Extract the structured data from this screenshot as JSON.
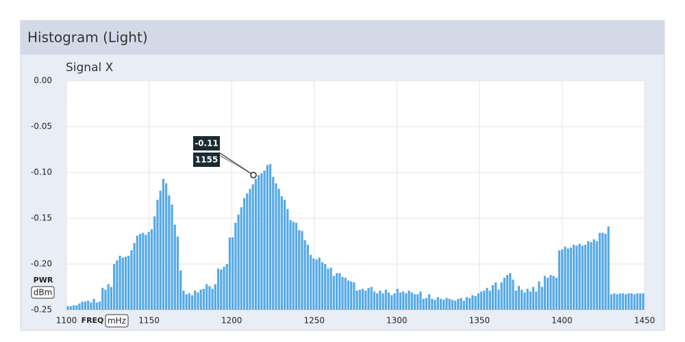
{
  "chart_data": {
    "type": "histogram",
    "title": "Histogram (Light)",
    "subtitle": "Signal X",
    "x_label": "FREQ",
    "x_unit": "mHz",
    "y_label": "PWR",
    "y_unit": "dBm",
    "color": "#55a9e6",
    "grid": true,
    "xlim": [
      1100,
      1450
    ],
    "xticks": [
      1100,
      1150,
      1200,
      1250,
      1300,
      1350,
      1400,
      1450
    ],
    "ylim": [
      -0.25,
      0
    ],
    "yticks": [
      {
        "value": 0,
        "label": "0.00"
      },
      -0.05,
      {
        "value": -0.1,
        "label": "-0.10"
      },
      -0.15,
      {
        "value": -0.2,
        "label": "-0.20"
      },
      -0.25
    ],
    "tooltip": {
      "y": -0.11,
      "x": 1155
    },
    "bins": [
      1100,
      1101.75,
      1103.5,
      1105.25,
      1107,
      1108.75,
      1110.5,
      1112.25,
      1114,
      1115.75,
      1117.5,
      1119.25,
      1121,
      1122.75,
      1124.5,
      1126.25,
      1128,
      1129.75,
      1131.5,
      1133.25,
      1135,
      1136.75,
      1138.5,
      1140.25,
      1142,
      1143.75,
      1145.5,
      1147.25,
      1149,
      1150.75,
      1152.5,
      1154.25,
      1156,
      1157.75,
      1159.5,
      1161.25,
      1163,
      1164.75,
      1166.5,
      1168.25,
      1170,
      1171.75,
      1173.5,
      1175.25,
      1177,
      1178.75,
      1180.5,
      1182.25,
      1184,
      1185.75,
      1187.5,
      1189.25,
      1191,
      1192.75,
      1194.5,
      1196.25,
      1198,
      1199.75,
      1201.5,
      1203.25,
      1205,
      1206.75,
      1208.5,
      1210.25,
      1212,
      1213.75,
      1215.5,
      1217.25,
      1219,
      1220.75,
      1222.5,
      1224.25,
      1226,
      1227.75,
      1229.5,
      1231.25,
      1233,
      1234.75,
      1236.5,
      1238.25,
      1240,
      1241.75,
      1243.5,
      1245.25,
      1247,
      1248.75,
      1250.5,
      1252.25,
      1254,
      1255.75,
      1257.5,
      1259.25,
      1261,
      1262.75,
      1264.5,
      1266.25,
      1268,
      1269.75,
      1271.5,
      1273.25,
      1275,
      1276.75,
      1278.5,
      1280.25,
      1282,
      1283.75,
      1285.5,
      1287.25,
      1289,
      1290.75,
      1292.5,
      1294.25,
      1296,
      1297.75,
      1299.5,
      1301.25,
      1303,
      1304.75,
      1306.5,
      1308.25,
      1310,
      1311.75,
      1313.5,
      1315.25,
      1317,
      1318.75,
      1320.5,
      1322.25,
      1324,
      1325.75,
      1327.5,
      1329.25,
      1331,
      1332.75,
      1334.5,
      1336.25,
      1338,
      1339.75,
      1341.5,
      1343.25,
      1345,
      1346.75,
      1348.5,
      1350.25,
      1352,
      1353.75,
      1355.5,
      1357.25,
      1359,
      1360.75,
      1362.5,
      1364.25,
      1366,
      1367.75,
      1369.5,
      1371.25,
      1373,
      1374.75,
      1376.5,
      1378.25,
      1380,
      1381.75,
      1383.5,
      1385.25,
      1387,
      1388.75,
      1390.5,
      1392.25,
      1394,
      1395.75,
      1397.5,
      1399.25,
      1401,
      1402.75,
      1404.5,
      1406.25,
      1408,
      1409.75,
      1411.5,
      1413.25,
      1415,
      1416.75,
      1418.5,
      1420.25,
      1422,
      1423.75,
      1425.5,
      1427.25,
      1429,
      1430.75,
      1432.5,
      1434.25,
      1436,
      1437.75,
      1439.5,
      1441.25,
      1443,
      1444.75,
      1446.5,
      1448.25,
      1450
    ],
    "values": [
      -0.246,
      -0.246,
      -0.245,
      -0.245,
      -0.243,
      -0.241,
      -0.241,
      -0.24,
      -0.242,
      -0.238,
      -0.242,
      -0.241,
      -0.226,
      -0.228,
      -0.222,
      -0.225,
      -0.2,
      -0.196,
      -0.191,
      -0.193,
      -0.192,
      -0.191,
      -0.185,
      -0.177,
      -0.169,
      -0.167,
      -0.166,
      -0.168,
      -0.165,
      -0.162,
      -0.148,
      -0.13,
      -0.12,
      -0.107,
      -0.112,
      -0.125,
      -0.135,
      -0.157,
      -0.17,
      -0.207,
      -0.229,
      -0.233,
      -0.232,
      -0.234,
      -0.229,
      -0.231,
      -0.228,
      -0.227,
      -0.222,
      -0.224,
      -0.227,
      -0.222,
      -0.205,
      -0.206,
      -0.203,
      -0.2,
      -0.171,
      -0.171,
      -0.155,
      -0.146,
      -0.138,
      -0.128,
      -0.123,
      -0.118,
      -0.113,
      -0.107,
      -0.103,
      -0.101,
      -0.098,
      -0.092,
      -0.091,
      -0.105,
      -0.112,
      -0.118,
      -0.126,
      -0.13,
      -0.14,
      -0.152,
      -0.154,
      -0.155,
      -0.163,
      -0.164,
      -0.174,
      -0.179,
      -0.19,
      -0.194,
      -0.195,
      -0.193,
      -0.198,
      -0.2,
      -0.205,
      -0.204,
      -0.213,
      -0.21,
      -0.21,
      -0.214,
      -0.215,
      -0.218,
      -0.219,
      -0.22,
      -0.229,
      -0.228,
      -0.227,
      -0.229,
      -0.226,
      -0.225,
      -0.23,
      -0.232,
      -0.229,
      -0.232,
      -0.228,
      -0.231,
      -0.234,
      -0.232,
      -0.227,
      -0.231,
      -0.23,
      -0.232,
      -0.229,
      -0.231,
      -0.233,
      -0.233,
      -0.23,
      -0.238,
      -0.237,
      -0.233,
      -0.238,
      -0.239,
      -0.236,
      -0.238,
      -0.239,
      -0.237,
      -0.238,
      -0.239,
      -0.24,
      -0.238,
      -0.237,
      -0.24,
      -0.236,
      -0.237,
      -0.234,
      -0.235,
      -0.232,
      -0.23,
      -0.229,
      -0.226,
      -0.229,
      -0.223,
      -0.22,
      -0.228,
      -0.22,
      -0.215,
      -0.212,
      -0.21,
      -0.217,
      -0.229,
      -0.224,
      -0.228,
      -0.231,
      -0.227,
      -0.23,
      -0.225,
      -0.23,
      -0.219,
      -0.225,
      -0.213,
      -0.215,
      -0.212,
      -0.213,
      -0.215,
      -0.185,
      -0.184,
      -0.181,
      -0.183,
      -0.182,
      -0.179,
      -0.18,
      -0.178,
      -0.18,
      -0.179,
      -0.175,
      -0.176,
      -0.173,
      -0.175,
      -0.166,
      -0.166,
      -0.167,
      -0.159,
      -0.233,
      -0.232,
      -0.233,
      -0.232,
      -0.232,
      -0.233,
      -0.232,
      -0.232,
      -0.233,
      -0.232,
      -0.232,
      -0.232
    ]
  }
}
